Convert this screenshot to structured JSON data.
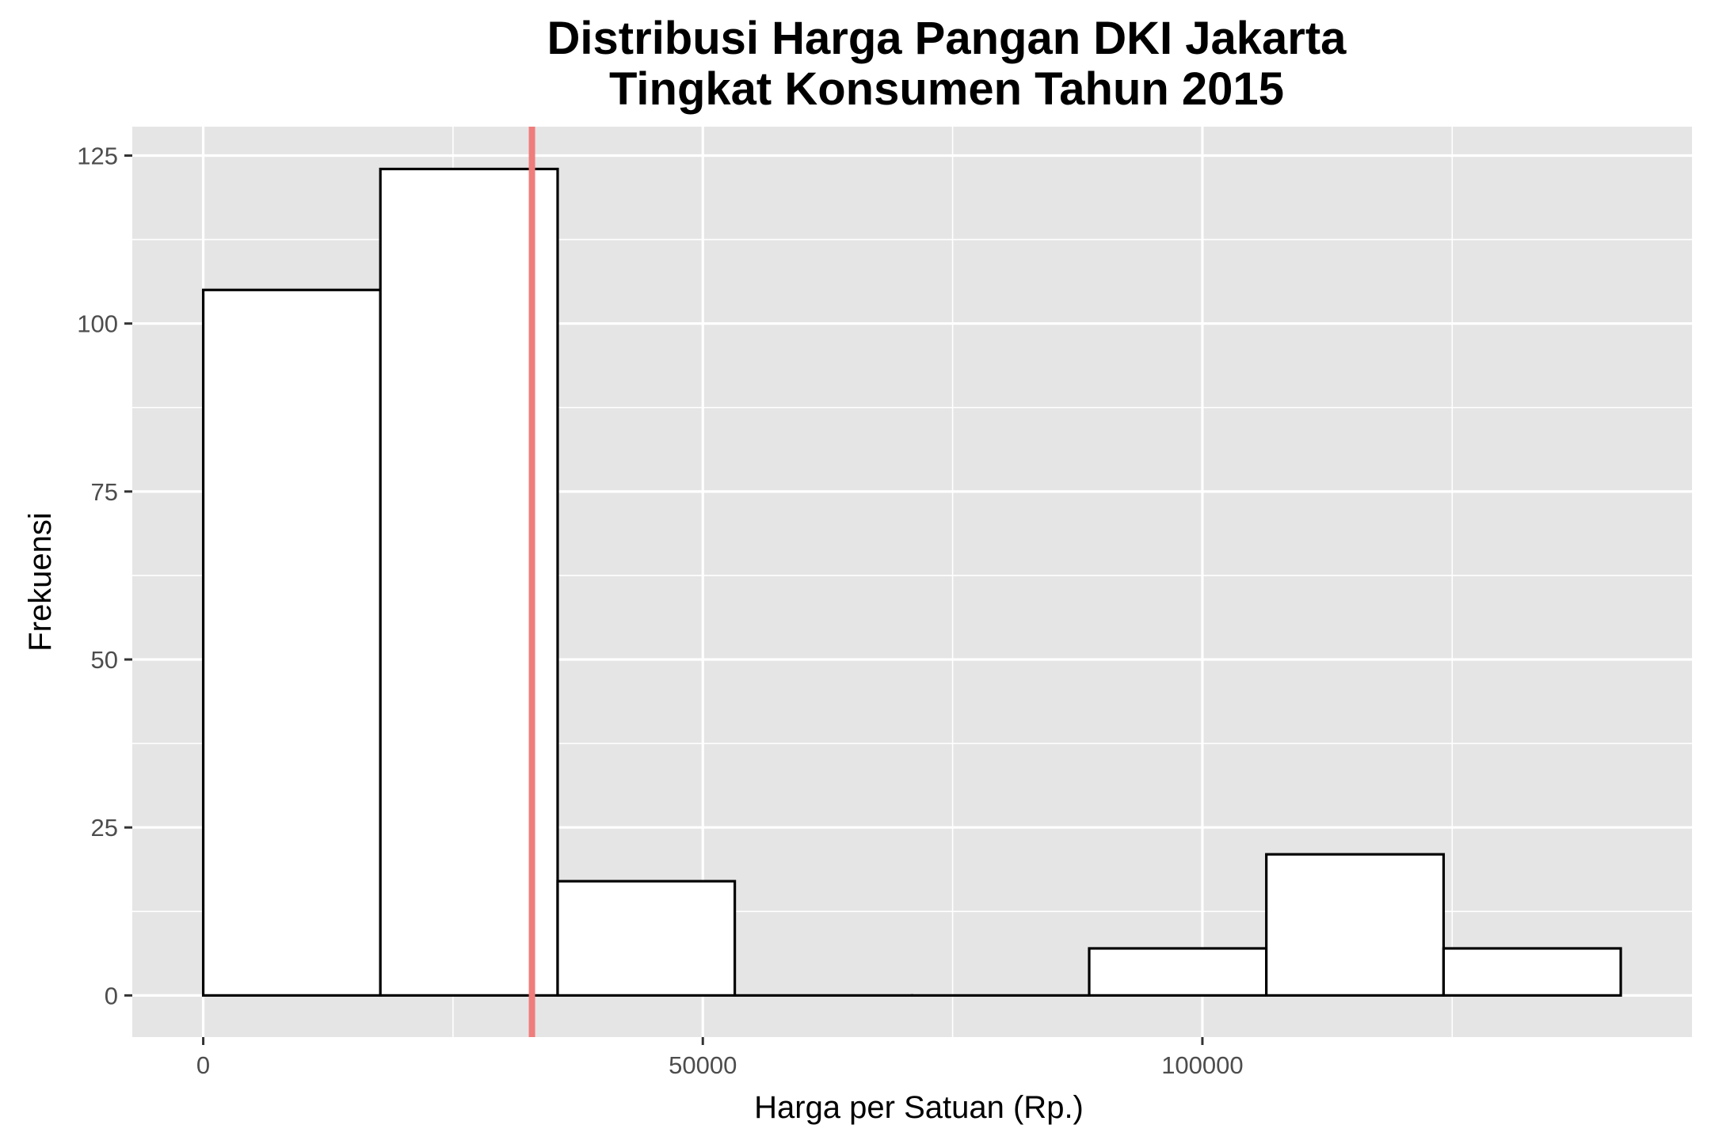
{
  "chart_data": {
    "type": "bar",
    "title": "Distribusi Harga Pangan DKI Jakarta",
    "subtitle": "Tingkat Konsumen Tahun 2015",
    "xlabel": "Harga per Satuan (Rp.)",
    "ylabel": "Frekuensi",
    "xlim": [
      -7100,
      149000
    ],
    "ylim": [
      -6.2,
      129.3
    ],
    "x_ticks": [
      0,
      50000,
      100000
    ],
    "x_tick_labels": [
      "0",
      "50000",
      "100000"
    ],
    "y_ticks": [
      0,
      25,
      50,
      75,
      100,
      125
    ],
    "y_tick_labels": [
      "0",
      "25",
      "50",
      "75",
      "100",
      "125"
    ],
    "bins": [
      {
        "x0": 0,
        "x1": 17730,
        "count": 105
      },
      {
        "x0": 17730,
        "x1": 35470,
        "count": 123
      },
      {
        "x0": 35470,
        "x1": 53200,
        "count": 17
      },
      {
        "x0": 53200,
        "x1": 70940,
        "count": 0
      },
      {
        "x0": 70940,
        "x1": 88670,
        "count": 0
      },
      {
        "x0": 88670,
        "x1": 106400,
        "count": 7
      },
      {
        "x0": 106400,
        "x1": 124140,
        "count": 21
      },
      {
        "x0": 124140,
        "x1": 141870,
        "count": 7
      }
    ],
    "reference_line": {
      "x": 32900,
      "color": "#f07c7c"
    },
    "bar_fill": "#ffffff",
    "bar_stroke": "#000000",
    "panel_background": "#e5e5e5",
    "grid": true,
    "legend": "none"
  }
}
